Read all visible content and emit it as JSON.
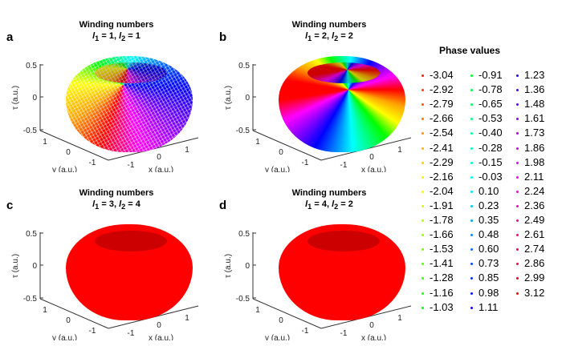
{
  "chart_data": [
    {
      "type": "surface3d",
      "panel_label": "a",
      "title": "Winding numbers",
      "subtitle": {
        "l1": "1",
        "l2": "1"
      },
      "style": "mesh",
      "xlabel": "x (a.u.)",
      "ylabel": "y (a.u.)",
      "zlabel": "τ (a.u.)",
      "xticks": [
        "-1",
        "0",
        "1"
      ],
      "yticks": [
        "1",
        "0",
        "-1"
      ],
      "zticks": [
        "0.5",
        "0",
        "-0.5"
      ],
      "zlim": [
        -0.5,
        0.5
      ]
    },
    {
      "type": "surface3d",
      "panel_label": "b",
      "title": "Winding numbers",
      "subtitle": {
        "l1": "2",
        "l2": "2"
      },
      "style": "solid",
      "xlabel": "x (a.u.)",
      "ylabel": "y (a.u.)",
      "zlabel": "τ (a.u.)",
      "xticks": [
        "-1",
        "0",
        "1"
      ],
      "yticks": [
        "1",
        "0",
        "-1"
      ],
      "zticks": [
        "0.5",
        "0",
        "-0.5"
      ],
      "zlim": [
        -0.5,
        0.5
      ]
    },
    {
      "type": "surface3d",
      "panel_label": "c",
      "title": "Winding numbers",
      "subtitle": {
        "l1": "3",
        "l2": "4"
      },
      "style": "solid",
      "xlabel": "x (a.u.)",
      "ylabel": "y (a.u.)",
      "zlabel": "τ (a.u.)",
      "xticks": [
        "-1",
        "0",
        "1"
      ],
      "yticks": [
        "1",
        "0",
        "-1"
      ],
      "zticks": [
        "0.5",
        "0",
        "-0.5"
      ],
      "zlim": [
        -0.5,
        0.5
      ]
    },
    {
      "type": "surface3d",
      "panel_label": "d",
      "title": "Winding numbers",
      "subtitle": {
        "l1": "4",
        "l2": "2"
      },
      "style": "solid",
      "xlabel": "x (a.u.)",
      "ylabel": "y (a.u.)",
      "zlabel": "τ (a.u.)",
      "xticks": [
        "-1",
        "0",
        "1"
      ],
      "yticks": [
        "1",
        "0",
        "-1"
      ],
      "zticks": [
        "0.5",
        "0",
        "-0.5"
      ],
      "zlim": [
        -0.5,
        0.5
      ]
    }
  ],
  "legend": {
    "title": "Phase values",
    "colormap": "hsv",
    "values": [
      -3.04,
      -2.92,
      -2.79,
      -2.66,
      -2.54,
      -2.41,
      -2.29,
      -2.16,
      -2.04,
      -1.91,
      -1.78,
      -1.66,
      -1.53,
      -1.41,
      -1.28,
      -1.16,
      -1.03,
      -0.91,
      -0.78,
      -0.65,
      -0.53,
      -0.4,
      -0.28,
      -0.15,
      -0.03,
      0.1,
      0.23,
      0.35,
      0.48,
      0.6,
      0.73,
      0.85,
      0.98,
      1.11,
      1.23,
      1.36,
      1.48,
      1.61,
      1.73,
      1.86,
      1.98,
      2.11,
      2.24,
      2.36,
      2.49,
      2.61,
      2.74,
      2.86,
      2.99,
      3.12
    ]
  }
}
